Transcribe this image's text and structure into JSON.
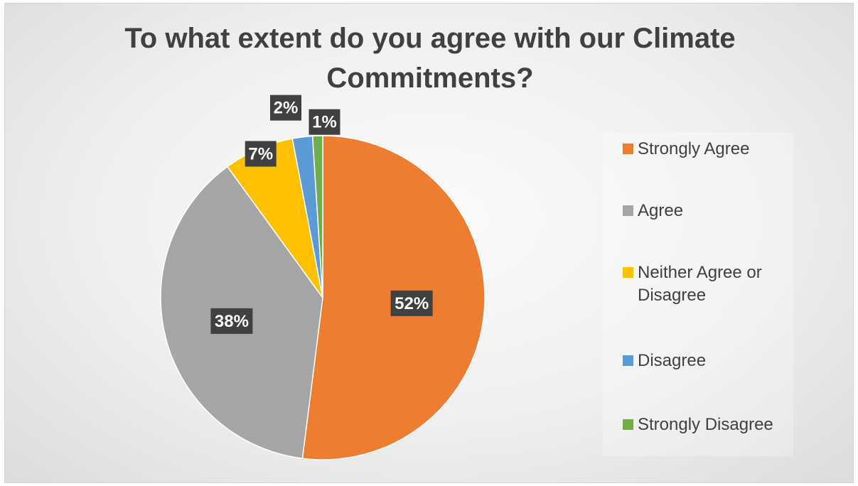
{
  "chart_data": {
    "type": "pie",
    "title": "To what extent do you agree with our Climate Commitments?",
    "categories": [
      "Strongly Agree",
      "Agree",
      "Neither Agree or Disagree",
      "Disagree",
      "Strongly Disagree"
    ],
    "values": [
      52,
      38,
      7,
      2,
      1
    ],
    "data_labels": [
      "52%",
      "38%",
      "7%",
      "2%",
      "1%"
    ],
    "colors": [
      "#ED7D31",
      "#A5A5A5",
      "#FFC000",
      "#5B9BD5",
      "#70AD47"
    ],
    "legend_position": "right"
  }
}
